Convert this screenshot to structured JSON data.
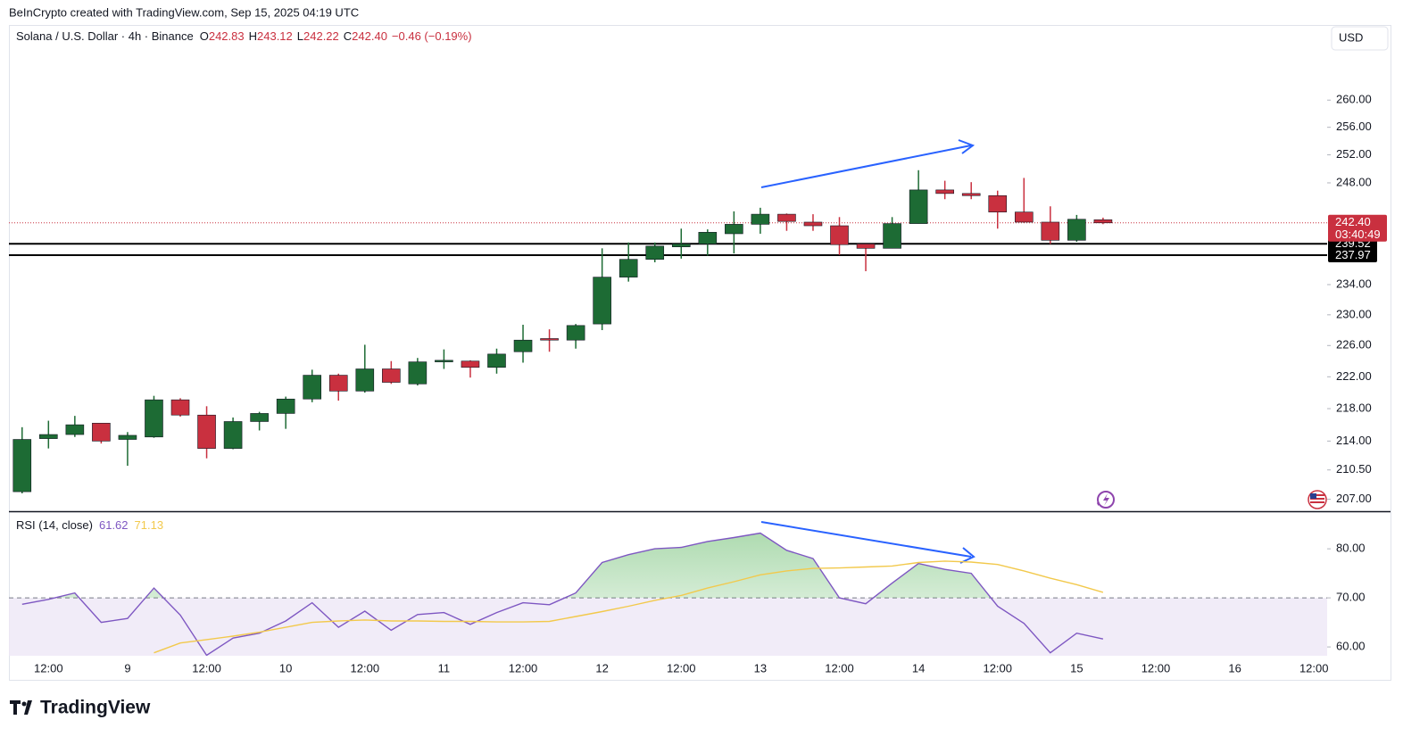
{
  "header": "BeInCrypto created with TradingView.com, Sep 15, 2025 04:19 UTC",
  "currency": "USD",
  "brand": "TradingView",
  "chart_data": [
    {
      "type": "candlestick",
      "legend": {
        "symbol": "Solana / U.S. Dollar · 4h · Binance",
        "items": [
          {
            "key": "O",
            "value": "242.83"
          },
          {
            "key": "H",
            "value": "243.12"
          },
          {
            "key": "L",
            "value": "242.22"
          },
          {
            "key": "C",
            "value": "242.40"
          }
        ],
        "change": "−0.46 (−0.19%)"
      },
      "categories": [
        null,
        "12:00",
        null,
        null,
        "9",
        null,
        null,
        "12:00",
        null,
        null,
        "10",
        null,
        null,
        "12:00",
        null,
        null,
        "11",
        null,
        null,
        "12:00",
        null,
        null,
        "12",
        null,
        null,
        "12:00",
        null,
        null,
        "13",
        null,
        null,
        "12:00",
        null,
        null,
        "14",
        null,
        null,
        "12:00",
        null,
        null,
        "15",
        null,
        null,
        "12:00",
        null,
        null,
        "16",
        null,
        null,
        "12:00"
      ],
      "open": [
        207.9,
        214.3,
        214.8,
        216.2,
        214.2,
        214.5,
        219.1,
        217.2,
        213.1,
        216.4,
        217.4,
        219.2,
        222.2,
        220.2,
        223.0,
        221.1,
        223.9,
        224.0,
        223.2,
        225.2,
        226.9,
        226.7,
        228.8,
        235.0,
        237.4,
        239.1,
        239.5,
        240.9,
        242.2,
        243.6,
        242.5,
        242.0,
        239.5,
        238.9,
        242.3,
        247.0,
        246.5,
        246.2,
        243.9,
        242.5,
        240.0,
        242.83,
        null,
        null,
        null,
        null,
        null,
        null,
        null,
        null
      ],
      "high": [
        215.7,
        216.5,
        217.1,
        216.2,
        215.1,
        219.6,
        219.3,
        218.3,
        216.9,
        217.6,
        219.5,
        222.9,
        222.4,
        226.1,
        224.0,
        224.4,
        225.5,
        224.1,
        225.6,
        228.7,
        228.1,
        228.8,
        238.9,
        239.7,
        239.7,
        241.6,
        241.5,
        244.0,
        244.5,
        243.7,
        243.6,
        243.2,
        239.5,
        243.2,
        249.8,
        248.3,
        248.1,
        246.9,
        248.7,
        244.7,
        243.5,
        243.12,
        null,
        null,
        null,
        null,
        null,
        null,
        null,
        null
      ],
      "low": [
        207.7,
        213.1,
        214.5,
        213.7,
        211.0,
        214.4,
        217.0,
        211.9,
        213.0,
        215.3,
        215.5,
        218.8,
        219.0,
        220.0,
        221.1,
        220.9,
        223.0,
        221.9,
        222.4,
        223.8,
        225.2,
        225.6,
        228.0,
        234.4,
        237.0,
        237.5,
        237.9,
        238.2,
        240.9,
        241.3,
        241.3,
        238.0,
        235.8,
        238.9,
        242.3,
        245.7,
        245.7,
        241.6,
        242.4,
        239.5,
        239.8,
        242.22,
        null,
        null,
        null,
        null,
        null,
        null,
        null,
        null
      ],
      "close": [
        214.2,
        214.8,
        216.0,
        214.0,
        214.7,
        219.1,
        217.2,
        213.1,
        216.4,
        217.4,
        219.2,
        222.2,
        220.2,
        223.0,
        221.3,
        223.9,
        224.1,
        223.2,
        224.9,
        226.7,
        226.7,
        228.6,
        235.0,
        237.4,
        239.2,
        239.5,
        241.1,
        242.2,
        243.6,
        242.6,
        242.0,
        239.4,
        238.9,
        242.3,
        247.0,
        246.5,
        246.2,
        243.9,
        242.5,
        240.0,
        242.9,
        242.4,
        null,
        null,
        null,
        null,
        null,
        null,
        null,
        null
      ],
      "up_color": "#1d6b34",
      "down_color": "#c9303f",
      "log_scale": true,
      "ylim": [
        205.7,
        271.4
      ],
      "yticks": [
        {
          "value": 207,
          "label": "207.00"
        },
        {
          "value": 210.5,
          "label": "210.50"
        },
        {
          "value": 214,
          "label": "214.00"
        },
        {
          "value": 218,
          "label": "218.00"
        },
        {
          "value": 222,
          "label": "222.00"
        },
        {
          "value": 226,
          "label": "226.00"
        },
        {
          "value": 230,
          "label": "230.00"
        },
        {
          "value": 234,
          "label": "234.00"
        },
        {
          "value": 248,
          "label": "248.00"
        },
        {
          "value": 252,
          "label": "252.00"
        },
        {
          "value": 256,
          "label": "256.00"
        },
        {
          "value": 260,
          "label": "260.00"
        }
      ],
      "levels": [
        239.52,
        237.97
      ],
      "level_color": "#000000",
      "last_price": {
        "value": 242.4,
        "label": "242.40",
        "countdown": "03:40:49",
        "color": "#c9303f"
      }
    },
    {
      "type": "line",
      "title": "RSI (14, close)",
      "series": [
        {
          "color": "#7e57c2",
          "values": [
            68.7,
            69.7,
            71,
            65,
            65.8,
            72,
            66.5,
            58.3,
            61.8,
            62.8,
            65.3,
            69,
            64,
            67.3,
            63.4,
            66.6,
            67,
            64.6,
            67,
            69,
            68.6,
            71,
            77.2,
            78.8,
            80,
            80.3,
            81.5,
            82.3,
            83.2,
            79.7,
            78,
            70,
            68.8,
            73,
            77,
            75.8,
            75,
            68.3,
            64.8,
            58.8,
            62.8,
            61.62,
            null,
            null,
            null,
            null,
            null,
            null,
            null,
            null
          ]
        },
        {
          "color": "#f2c94c",
          "values": [
            null,
            null,
            null,
            null,
            null,
            58.8,
            60.8,
            61.5,
            62.2,
            63,
            64,
            65,
            65.3,
            65.5,
            65.3,
            65.3,
            65.2,
            65.2,
            65.1,
            65.1,
            65.2,
            66.2,
            67.2,
            68.3,
            69.5,
            70.5,
            72,
            73.3,
            74.7,
            75.5,
            76,
            76.1,
            76.3,
            76.5,
            77.2,
            77.5,
            77.3,
            76.8,
            75.5,
            74,
            72.7,
            71.13,
            null,
            null,
            null,
            null,
            null,
            null,
            null,
            null
          ]
        }
      ],
      "overbought": 70,
      "ylim": [
        58.2,
        87.3
      ],
      "yticks": [
        {
          "value": 60,
          "label": "60.00"
        },
        {
          "value": 70,
          "label": "70.00"
        },
        {
          "value": 80,
          "label": "80.00"
        }
      ]
    }
  ]
}
